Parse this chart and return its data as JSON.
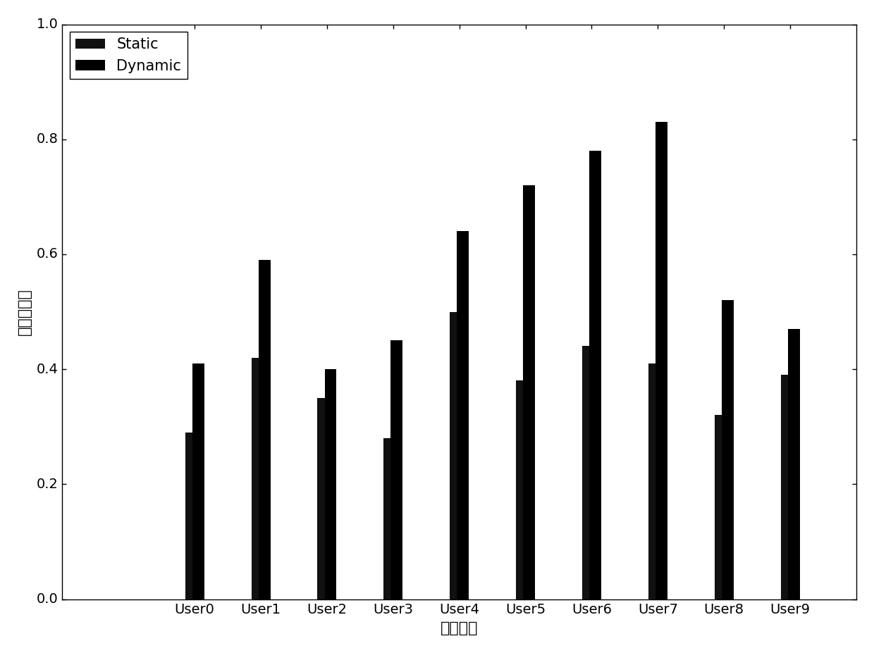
{
  "users": [
    "User0",
    "User1",
    "User2",
    "User3",
    "User4",
    "User5",
    "User6",
    "User7",
    "User8",
    "User9"
  ],
  "static_values": [
    0.29,
    0.42,
    0.35,
    0.28,
    0.5,
    0.38,
    0.44,
    0.41,
    0.32,
    0.39
  ],
  "dynamic_values": [
    0.41,
    0.59,
    0.4,
    0.45,
    0.64,
    0.72,
    0.78,
    0.83,
    0.52,
    0.47
  ],
  "static_color": "#111111",
  "dynamic_color": "#000000",
  "xlabel": "用户编号",
  "ylabel": "用户满意度",
  "ylim": [
    0.0,
    1.0
  ],
  "bar_width": 0.18,
  "legend_labels": [
    "Static",
    "Dynamic"
  ],
  "label_fontsize": 16,
  "tick_fontsize": 14,
  "legend_fontsize": 15,
  "yticks": [
    0.0,
    0.2,
    0.4,
    0.6,
    0.8,
    1.0
  ]
}
